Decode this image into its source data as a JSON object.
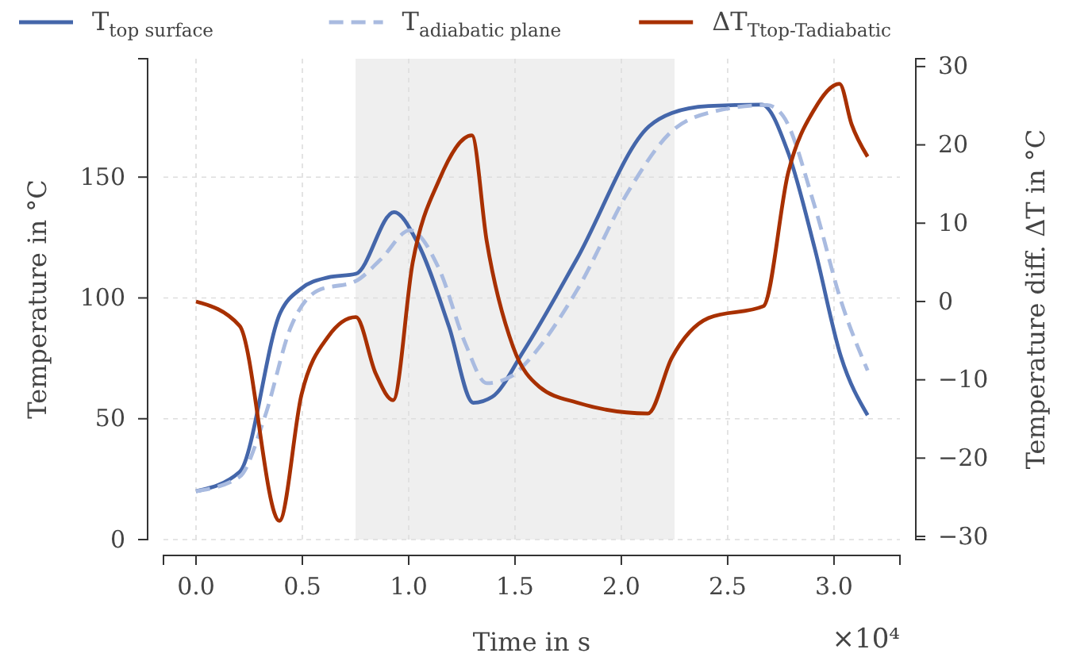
{
  "chart_data": {
    "type": "line",
    "xlabel": "Time in s",
    "ylabel": "Temperature in °C",
    "y2label": "Temperature diff. ΔT in °C",
    "annotations": [
      "×10⁴"
    ],
    "xlim": [
      -0.153,
      3.31
    ],
    "xticks": [
      {
        "value": 0,
        "label": "0.0"
      },
      0.5,
      {
        "value": 1,
        "label": "1.0"
      },
      1.5,
      {
        "value": 2,
        "label": "2.0"
      },
      2.5,
      {
        "value": 3,
        "label": "3.0"
      }
    ],
    "ylim": [
      0,
      199
    ],
    "yticks": [
      0,
      50,
      100,
      150
    ],
    "y2lim": [
      -30.4,
      31
    ],
    "y2ticks": [
      {
        "value": -30,
        "label": "−30"
      },
      {
        "value": -20,
        "label": "−20"
      },
      {
        "value": -10,
        "label": "−10"
      },
      0,
      10,
      20,
      30
    ],
    "grid": true,
    "legend": "top",
    "bands": [
      {
        "axis": "x",
        "from": 0.75,
        "to": 2.25,
        "color": "#efefef"
      }
    ],
    "series": [
      {
        "name": "T$_{top surface}$",
        "color": "#4466aa",
        "line_style": "solid",
        "x": [
          0,
          0.205,
          0.397,
          0.496,
          0.621,
          0.752,
          0.931,
          1.041,
          1.19,
          1.304,
          1.392,
          1.54,
          1.79,
          2.13,
          2.237,
          2.41,
          2.66,
          2.785,
          2.909,
          3.033,
          3.158
        ],
        "values": [
          20,
          28,
          94,
          104,
          108.5,
          110,
          135.5,
          123,
          88,
          56.6,
          59,
          78,
          116,
          171,
          176.5,
          179.4,
          180,
          160,
          120.6,
          75.6,
          51.5
        ]
      },
      {
        "name": "T$_{adiabatic plane}$",
        "color": "#a9bbe0",
        "line_style": "dashed",
        "x": [
          0,
          0.205,
          0.322,
          0.446,
          0.571,
          0.752,
          0.869,
          1.006,
          1.143,
          1.267,
          1.367,
          1.491,
          1.54,
          1.79,
          2.039,
          2.237,
          2.41,
          2.685,
          2.76,
          2.909,
          3.033,
          3.158
        ],
        "values": [
          20,
          26,
          50.4,
          88,
          103,
          107,
          116,
          128,
          112,
          81,
          64.7,
          68,
          72,
          103,
          145,
          169,
          176.6,
          179.8,
          175.4,
          138,
          98.7,
          70
        ]
      },
      {
        "name": "ΔT$_{Ttop-Tadiabatic}$",
        "color": "#a83000",
        "line_style": "solid",
        "axis": "y2",
        "x": [
          0,
          0.205,
          0.392,
          0.496,
          0.621,
          0.752,
          0.845,
          0.927,
          1.019,
          1.143,
          1.297,
          1.367,
          1.491,
          1.615,
          1.79,
          2.125,
          2.237,
          2.41,
          2.668,
          2.785,
          2.909,
          3.026,
          3.083,
          3.158
        ],
        "values": [
          0,
          -3.1,
          -28,
          -11.9,
          -4.5,
          -2,
          -9.2,
          -12.6,
          5,
          15.5,
          21.2,
          7.7,
          -5.8,
          -10.9,
          -12.9,
          -14.3,
          -7.2,
          -2.1,
          -0.6,
          16.5,
          24.6,
          27.8,
          22.6,
          18.5
        ]
      }
    ]
  }
}
